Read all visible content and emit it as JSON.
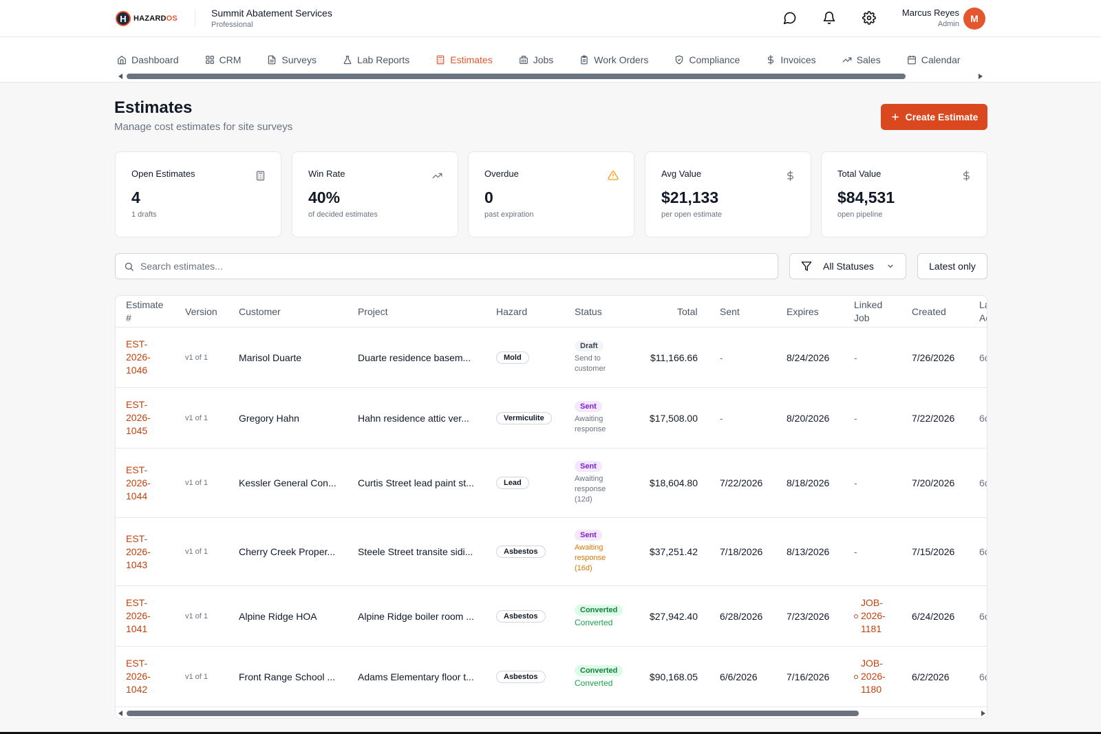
{
  "header": {
    "logo_text": "HAZARD",
    "logo_accent": "OS",
    "logo_mark": "H",
    "company_name": "Summit Abatement Services",
    "company_tier": "Professional",
    "user_name": "Marcus Reyes",
    "user_role": "Admin",
    "avatar_initial": "M"
  },
  "nav": {
    "tabs": [
      {
        "label": "Dashboard",
        "icon": "home-icon"
      },
      {
        "label": "CRM",
        "icon": "grid-icon"
      },
      {
        "label": "Surveys",
        "icon": "document-icon"
      },
      {
        "label": "Lab Reports",
        "icon": "flask-icon"
      },
      {
        "label": "Estimates",
        "icon": "calculator-icon",
        "active": true
      },
      {
        "label": "Jobs",
        "icon": "building-icon"
      },
      {
        "label": "Work Orders",
        "icon": "clipboard-icon"
      },
      {
        "label": "Compliance",
        "icon": "shield-check-icon"
      },
      {
        "label": "Invoices",
        "icon": "dollar-icon"
      },
      {
        "label": "Sales",
        "icon": "trending-up-icon"
      },
      {
        "label": "Calendar",
        "icon": "calendar-icon"
      }
    ]
  },
  "page": {
    "title": "Estimates",
    "subtitle": "Manage cost estimates for site surveys",
    "create_label": "Create Estimate"
  },
  "kpis": [
    {
      "label": "Open Estimates",
      "value": "4",
      "sub": "1 drafts",
      "icon": "calculator-icon"
    },
    {
      "label": "Win Rate",
      "value": "40%",
      "sub": "of decided estimates",
      "icon": "trending-up-icon"
    },
    {
      "label": "Overdue",
      "value": "0",
      "sub": "past expiration",
      "icon": "warning-icon"
    },
    {
      "label": "Avg Value",
      "value": "$21,133",
      "sub": "per open estimate",
      "icon": "dollar-icon"
    },
    {
      "label": "Total Value",
      "value": "$84,531",
      "sub": "open pipeline",
      "icon": "dollar-icon"
    }
  ],
  "filters": {
    "search_placeholder": "Search estimates...",
    "status_selected": "All Statuses",
    "latest_label": "Latest only"
  },
  "table": {
    "headers": {
      "estimate": [
        "Estimate",
        "#"
      ],
      "version": "Version",
      "customer": "Customer",
      "project": "Project",
      "hazard": "Hazard",
      "status": "Status",
      "total": "Total",
      "sent": "Sent",
      "expires": "Expires",
      "linked_job": [
        "Linked",
        "Job"
      ],
      "created": "Created",
      "last": [
        "La",
        "Ac"
      ]
    },
    "rows": [
      {
        "est": [
          "EST-",
          "2026-",
          "1046"
        ],
        "version": "v1 of 1",
        "customer": "Marisol Duarte",
        "project": "Duarte residence basem...",
        "hazard": "Mold",
        "status": "Draft",
        "status_type": "draft",
        "status_note": [
          "Send to",
          "customer"
        ],
        "note_type": "",
        "total": "$11,166.66",
        "sent": "-",
        "expires": "8/24/2026",
        "job": null,
        "created": "7/26/2026",
        "last": "6c"
      },
      {
        "est": [
          "EST-",
          "2026-",
          "1045"
        ],
        "version": "v1 of 1",
        "customer": "Gregory Hahn",
        "project": "Hahn residence attic ver...",
        "hazard": "Vermiculite",
        "status": "Sent",
        "status_type": "sent",
        "status_note": [
          "Awaiting",
          "response"
        ],
        "note_type": "",
        "total": "$17,508.00",
        "sent": "-",
        "expires": "8/20/2026",
        "job": null,
        "created": "7/22/2026",
        "last": "6c"
      },
      {
        "est": [
          "EST-",
          "2026-",
          "1044"
        ],
        "version": "v1 of 1",
        "customer": "Kessler General Con...",
        "project": "Curtis Street lead paint st...",
        "hazard": "Lead",
        "status": "Sent",
        "status_type": "sent",
        "status_note": [
          "Awaiting",
          "response",
          "(12d)"
        ],
        "note_type": "",
        "total": "$18,604.80",
        "sent": "7/22/2026",
        "expires": "8/18/2026",
        "job": null,
        "created": "7/20/2026",
        "last": "6c"
      },
      {
        "est": [
          "EST-",
          "2026-",
          "1043"
        ],
        "version": "v1 of 1",
        "customer": "Cherry Creek Proper...",
        "project": "Steele Street transite sidi...",
        "hazard": "Asbestos",
        "status": "Sent",
        "status_type": "sent",
        "status_note": [
          "Awaiting",
          "response",
          "(16d)"
        ],
        "note_type": "warn",
        "total": "$37,251.42",
        "sent": "7/18/2026",
        "expires": "8/13/2026",
        "job": null,
        "created": "7/15/2026",
        "last": "6c"
      },
      {
        "est": [
          "EST-",
          "2026-",
          "1041"
        ],
        "version": "v1 of 1",
        "customer": "Alpine Ridge HOA",
        "project": "Alpine Ridge boiler room ...",
        "hazard": "Asbestos",
        "status": "Converted",
        "status_type": "converted",
        "status_note": [
          "Converted"
        ],
        "note_type": "ok",
        "total": "$27,942.40",
        "sent": "6/28/2026",
        "expires": "7/23/2026",
        "job": [
          "JOB-",
          "2026-",
          "1181"
        ],
        "created": "6/24/2026",
        "last": "6c"
      },
      {
        "est": [
          "EST-",
          "2026-",
          "1042"
        ],
        "version": "v1 of 1",
        "customer": "Front Range School ...",
        "project": "Adams Elementary floor t...",
        "hazard": "Asbestos",
        "status": "Converted",
        "status_type": "converted",
        "status_note": [
          "Converted"
        ],
        "note_type": "ok",
        "total": "$90,168.05",
        "sent": "6/6/2026",
        "expires": "7/16/2026",
        "job": [
          "JOB-",
          "2026-",
          "1180"
        ],
        "created": "6/2/2026",
        "last": "6c"
      }
    ]
  },
  "colors": {
    "accent": "#e4572e",
    "link": "#c2410c",
    "warning": "#d97706"
  }
}
